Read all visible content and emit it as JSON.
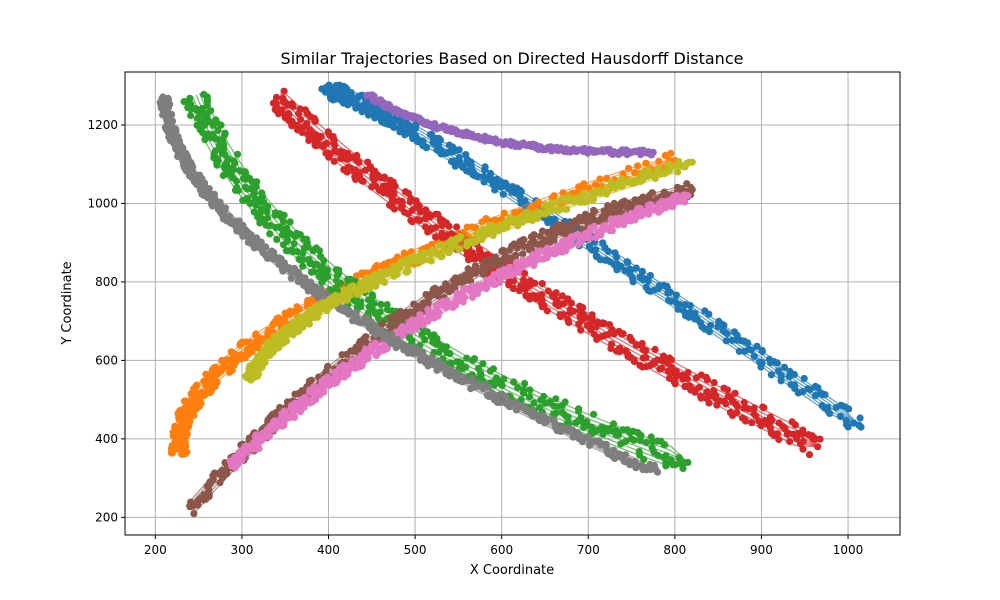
{
  "chart_data": {
    "type": "scatter",
    "title": "Similar Trajectories Based on Directed Hausdorff Distance",
    "xlabel": "X Coordinate",
    "ylabel": "Y Coordinate",
    "xlim": [
      165,
      1060
    ],
    "ylim": [
      155,
      1335
    ],
    "xticks": [
      200,
      300,
      400,
      500,
      600,
      700,
      800,
      900,
      1000
    ],
    "yticks": [
      200,
      400,
      600,
      800,
      1000,
      1200
    ],
    "grid": true,
    "legend": "none",
    "series": [
      {
        "color": "#1f77b4",
        "band": 16,
        "start": [
          400,
          1280
        ],
        "mid": [
          560,
          1100
        ],
        "end": [
          1015,
          430
        ]
      },
      {
        "color": "#ff7f0e",
        "band": 16,
        "start": [
          228,
          360
        ],
        "mid": [
          360,
          710
        ],
        "end": [
          800,
          1110
        ]
      },
      {
        "color": "#2ca02c",
        "band": 24,
        "start": [
          245,
          1275
        ],
        "mid": [
          440,
          750
        ],
        "end": [
          815,
          340
        ]
      },
      {
        "color": "#d62728",
        "band": 22,
        "start": [
          340,
          1270
        ],
        "mid": [
          600,
          830
        ],
        "end": [
          965,
          380
        ]
      },
      {
        "color": "#9467bd",
        "band": 5,
        "start": [
          445,
          1278
        ],
        "mid": [
          580,
          1165
        ],
        "end": [
          775,
          1130
        ]
      },
      {
        "color": "#8c564b",
        "band": 14,
        "start": [
          240,
          220
        ],
        "mid": [
          520,
          760
        ],
        "end": [
          820,
          1035
        ]
      },
      {
        "color": "#e377c2",
        "band": 12,
        "start": [
          288,
          330
        ],
        "mid": [
          520,
          720
        ],
        "end": [
          815,
          1020
        ]
      },
      {
        "color": "#7f7f7f",
        "band": 10,
        "start": [
          210,
          1270
        ],
        "mid": [
          360,
          820
        ],
        "end": [
          780,
          315
        ]
      },
      {
        "color": "#bcbd22",
        "band": 12,
        "start": [
          310,
          550
        ],
        "mid": [
          450,
          800
        ],
        "end": [
          820,
          1105
        ]
      }
    ]
  }
}
